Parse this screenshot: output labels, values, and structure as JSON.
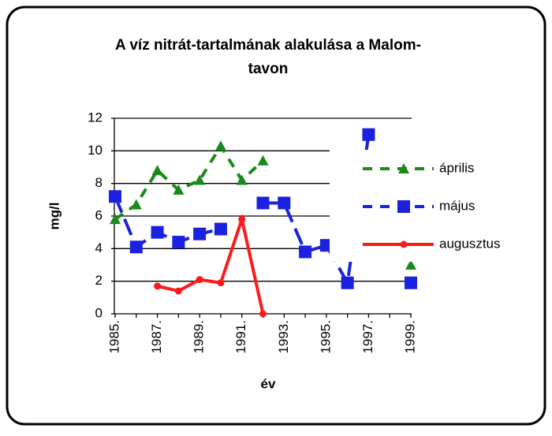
{
  "chart_data": {
    "type": "line",
    "title": [
      "A víz nitrát-tartalmának alakulása a Malom-",
      "tavon"
    ],
    "x_label": "év",
    "y_label": "mg/l",
    "categories": [
      "1985.",
      null,
      "1987.",
      null,
      "1989.",
      null,
      "1991.",
      null,
      "1993.",
      null,
      "1995.",
      null,
      "1997.",
      null,
      "1999."
    ],
    "series": [
      {
        "name": "április",
        "color": "#1a8a1a",
        "marker": "triangle",
        "dash": true,
        "values": [
          5.8,
          6.7,
          8.8,
          7.6,
          8.2,
          10.3,
          8.2,
          9.4,
          null,
          null,
          null,
          null,
          null,
          null,
          3
        ]
      },
      {
        "name": "május",
        "color": "#1a22e0",
        "marker": "square",
        "dash": true,
        "values": [
          7.2,
          4.1,
          5.0,
          4.4,
          4.9,
          5.2,
          null,
          6.8,
          6.8,
          3.8,
          4.2,
          1.9,
          11,
          null,
          1.9
        ]
      },
      {
        "name": "augusztus",
        "color": "#ff1a1a",
        "marker": "circle",
        "dash": false,
        "values": [
          null,
          null,
          1.7,
          1.4,
          2.1,
          1.9,
          5.8,
          0,
          null,
          null,
          null,
          null,
          null,
          null,
          null
        ]
      }
    ],
    "ylim": [
      0,
      12
    ],
    "yticks": [
      0,
      2,
      4,
      6,
      8,
      10,
      12
    ],
    "grid": true,
    "legend": "right"
  }
}
